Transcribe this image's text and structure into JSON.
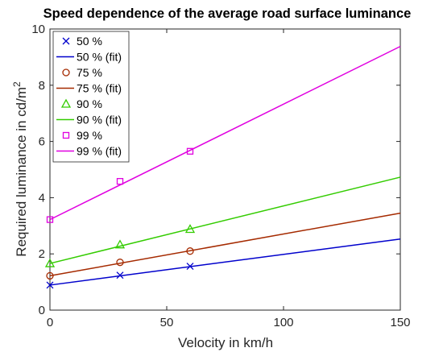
{
  "chart_data": {
    "type": "line",
    "title": "Speed dependence of the average road surface luminance",
    "xlabel": "Velocity in km/h",
    "ylabel_main": "Required luminance in cd/m",
    "ylabel_sup": "2",
    "xlim": [
      0,
      150
    ],
    "ylim": [
      0,
      10
    ],
    "xticks": [
      "0",
      "50",
      "100",
      "150"
    ],
    "yticks": [
      "0",
      "2",
      "4",
      "6",
      "8",
      "10"
    ],
    "grid": false,
    "legend_position": "top-left",
    "series": [
      {
        "name": "50 %",
        "fit_name": "50 % (fit)",
        "color": "#0000cc",
        "marker": "x",
        "x": [
          0,
          30,
          60
        ],
        "y": [
          0.89,
          1.24,
          1.56
        ],
        "fit": [
          [
            0,
            0.89
          ],
          [
            150,
            2.53
          ]
        ]
      },
      {
        "name": "75 %",
        "fit_name": "75 % (fit)",
        "color": "#a52a00",
        "marker": "circle",
        "x": [
          0,
          30,
          60
        ],
        "y": [
          1.22,
          1.7,
          2.1
        ],
        "fit": [
          [
            0,
            1.22
          ],
          [
            150,
            3.45
          ]
        ]
      },
      {
        "name": "90 %",
        "fit_name": "90 % (fit)",
        "color": "#33cc00",
        "marker": "triangle",
        "x": [
          0,
          30,
          60
        ],
        "y": [
          1.66,
          2.33,
          2.88
        ],
        "fit": [
          [
            0,
            1.66
          ],
          [
            150,
            4.73
          ]
        ]
      },
      {
        "name": "99 %",
        "fit_name": "99 % (fit)",
        "color": "#e000e0",
        "marker": "square",
        "x": [
          0,
          30,
          60
        ],
        "y": [
          3.22,
          4.58,
          5.65
        ],
        "fit": [
          [
            0,
            3.22
          ],
          [
            150,
            9.38
          ]
        ]
      }
    ]
  }
}
